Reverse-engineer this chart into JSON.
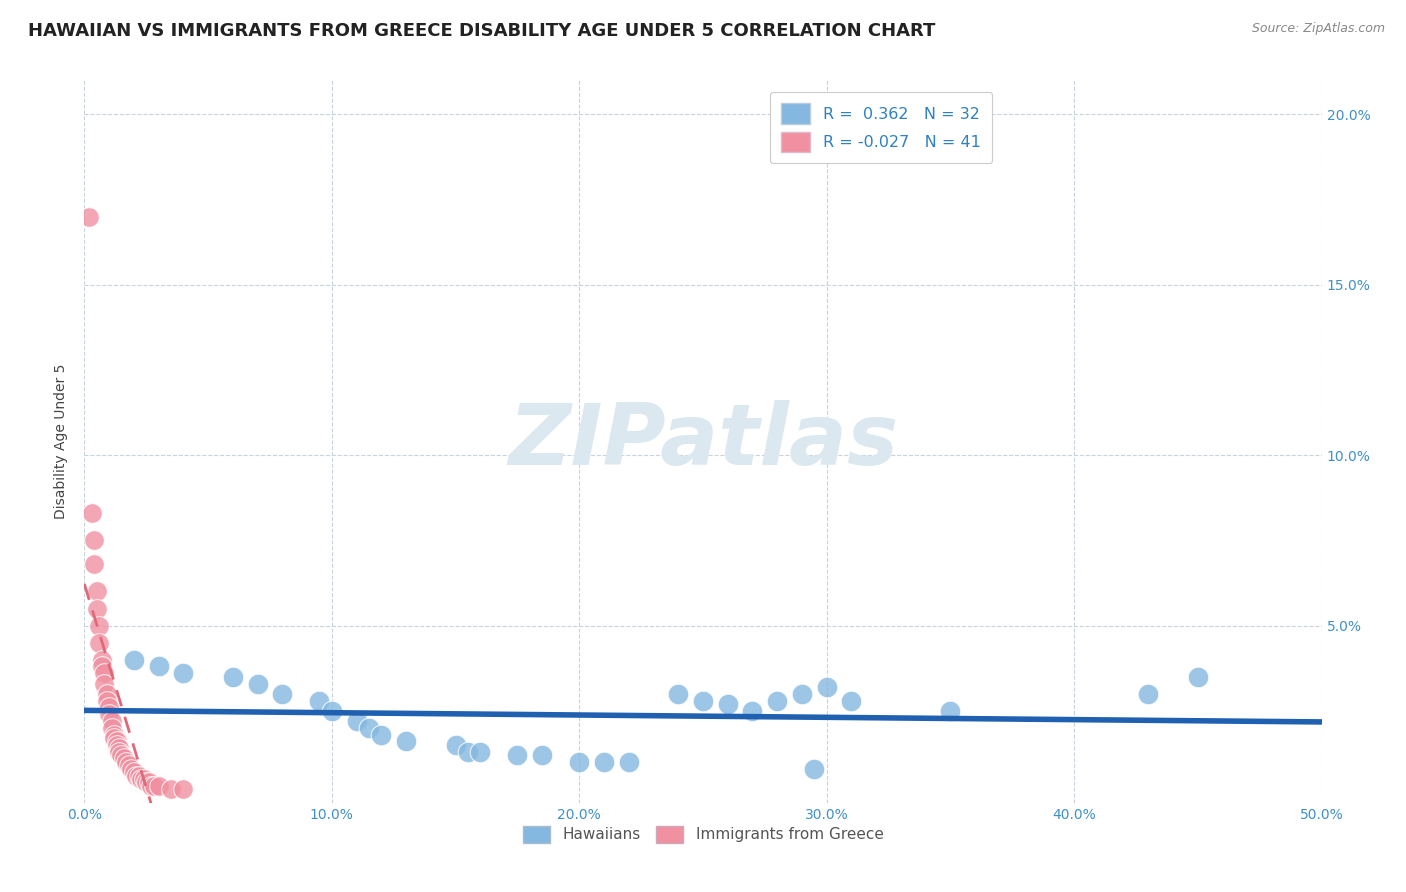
{
  "title": "HAWAIIAN VS IMMIGRANTS FROM GREECE DISABILITY AGE UNDER 5 CORRELATION CHART",
  "source": "Source: ZipAtlas.com",
  "ylabel": "Disability Age Under 5",
  "x_lim": [
    0.0,
    0.5
  ],
  "y_lim": [
    -0.002,
    0.21
  ],
  "y_ticks": [
    0.0,
    0.05,
    0.1,
    0.15,
    0.2
  ],
  "y_tick_labels": [
    "",
    "5.0%",
    "10.0%",
    "15.0%",
    "20.0%"
  ],
  "x_ticks": [
    0.0,
    0.1,
    0.2,
    0.3,
    0.4,
    0.5
  ],
  "x_tick_labels": [
    "0.0%",
    "10.0%",
    "20.0%",
    "30.0%",
    "40.0%",
    "50.0%"
  ],
  "legend_entries": [
    {
      "label": "R =  0.362   N = 32",
      "color": "#a8c8e8"
    },
    {
      "label": "R = -0.027   N = 41",
      "color": "#f8b8c8"
    }
  ],
  "hawaiians_x": [
    0.02,
    0.03,
    0.04,
    0.06,
    0.07,
    0.08,
    0.095,
    0.1,
    0.11,
    0.115,
    0.12,
    0.13,
    0.15,
    0.155,
    0.16,
    0.175,
    0.185,
    0.2,
    0.21,
    0.22,
    0.24,
    0.25,
    0.26,
    0.27,
    0.28,
    0.29,
    0.295,
    0.3,
    0.31,
    0.35,
    0.43,
    0.45
  ],
  "hawaiians_y": [
    0.04,
    0.038,
    0.036,
    0.035,
    0.033,
    0.03,
    0.028,
    0.025,
    0.022,
    0.02,
    0.018,
    0.016,
    0.015,
    0.013,
    0.013,
    0.012,
    0.012,
    0.01,
    0.01,
    0.01,
    0.03,
    0.028,
    0.027,
    0.025,
    0.028,
    0.03,
    0.008,
    0.032,
    0.028,
    0.025,
    0.03,
    0.035
  ],
  "greece_x": [
    0.002,
    0.003,
    0.004,
    0.004,
    0.005,
    0.005,
    0.006,
    0.006,
    0.007,
    0.007,
    0.008,
    0.008,
    0.009,
    0.009,
    0.01,
    0.01,
    0.011,
    0.011,
    0.012,
    0.012,
    0.013,
    0.013,
    0.014,
    0.014,
    0.015,
    0.016,
    0.017,
    0.018,
    0.019,
    0.02,
    0.021,
    0.022,
    0.023,
    0.024,
    0.025,
    0.026,
    0.027,
    0.028,
    0.03,
    0.035,
    0.04
  ],
  "greece_y": [
    0.17,
    0.083,
    0.075,
    0.068,
    0.06,
    0.055,
    0.05,
    0.045,
    0.04,
    0.038,
    0.036,
    0.033,
    0.03,
    0.028,
    0.026,
    0.024,
    0.022,
    0.02,
    0.018,
    0.017,
    0.016,
    0.015,
    0.014,
    0.013,
    0.012,
    0.011,
    0.01,
    0.009,
    0.008,
    0.007,
    0.006,
    0.006,
    0.005,
    0.005,
    0.004,
    0.004,
    0.003,
    0.003,
    0.003,
    0.002,
    0.002
  ],
  "hawaii_color": "#85b8e0",
  "greece_color": "#f090a0",
  "hawaii_line_color": "#2060b0",
  "greece_line_color": "#e06878",
  "background_color": "#ffffff",
  "grid_color": "#c8d4dc",
  "watermark_text": "ZIPatlas",
  "watermark_color": "#dce8f0",
  "title_fontsize": 13,
  "axis_label_fontsize": 10,
  "tick_fontsize": 10,
  "source_fontsize": 9
}
